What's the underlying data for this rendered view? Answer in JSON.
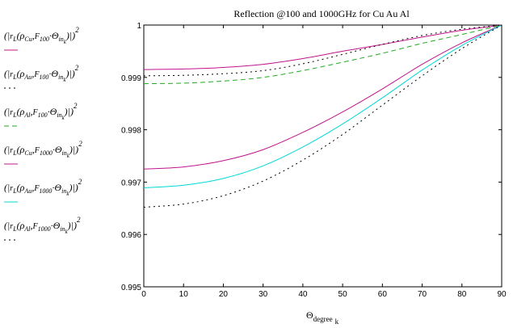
{
  "chart_data": {
    "type": "line",
    "title": "Reflection @100 and 1000GHz for Cu Au Al",
    "xlabel_main": "Θ",
    "xlabel_sub1": "degree",
    "xlabel_sub2": "k",
    "ylabel": "",
    "xlim": [
      0,
      90
    ],
    "ylim": [
      0.995,
      1
    ],
    "x_ticks": [
      0,
      10,
      20,
      30,
      40,
      50,
      60,
      70,
      80,
      90
    ],
    "y_ticks": [
      0.995,
      0.996,
      0.997,
      0.998,
      0.999,
      1
    ],
    "y_tick_labels": [
      "0.995",
      "0.996",
      "0.997",
      "0.998",
      "0.999",
      "1"
    ],
    "x": [
      0,
      10,
      20,
      30,
      40,
      50,
      60,
      70,
      80,
      90
    ],
    "series": [
      {
        "metal": "Cu",
        "freq": "100",
        "color": "#c0148c",
        "dash": "",
        "values": [
          0.99915,
          0.99916,
          0.99919,
          0.99925,
          0.99936,
          0.9995,
          0.99963,
          0.99977,
          0.9999,
          1.0
        ]
      },
      {
        "metal": "Au",
        "freq": "100",
        "color": "#000000",
        "dash": "2,4",
        "values": [
          0.99903,
          0.99904,
          0.99907,
          0.99913,
          0.99926,
          0.99944,
          0.99963,
          0.9998,
          0.99992,
          1.0
        ]
      },
      {
        "metal": "Al",
        "freq": "100",
        "color": "#22aa22",
        "dash": "6,4",
        "values": [
          0.99888,
          0.99889,
          0.99893,
          0.999,
          0.99913,
          0.99929,
          0.99946,
          0.99965,
          0.99982,
          1.0
        ]
      },
      {
        "metal": "Cu",
        "freq": "1000",
        "color": "#c0148c",
        "dash": "",
        "values": [
          0.99725,
          0.99729,
          0.99741,
          0.99762,
          0.99795,
          0.99834,
          0.99878,
          0.99925,
          0.99966,
          1.0
        ]
      },
      {
        "metal": "Au",
        "freq": "1000",
        "color": "#00d8d8",
        "dash": "",
        "values": [
          0.99689,
          0.99694,
          0.99707,
          0.99731,
          0.99767,
          0.99811,
          0.99861,
          0.99914,
          0.99961,
          1.0
        ]
      },
      {
        "metal": "Al",
        "freq": "1000",
        "color": "#000000",
        "dash": "2,4",
        "values": [
          0.99652,
          0.99658,
          0.99674,
          0.99702,
          0.99742,
          0.99791,
          0.99847,
          0.99903,
          0.99955,
          1.0
        ]
      }
    ],
    "legend_placement": "left",
    "grid": false
  },
  "legend_fixed": {
    "r": "r",
    "L": "L",
    "rho": "ρ",
    "F": "F",
    "theta": "Θ",
    "in": "in",
    "k": "k",
    "sup": "2"
  }
}
